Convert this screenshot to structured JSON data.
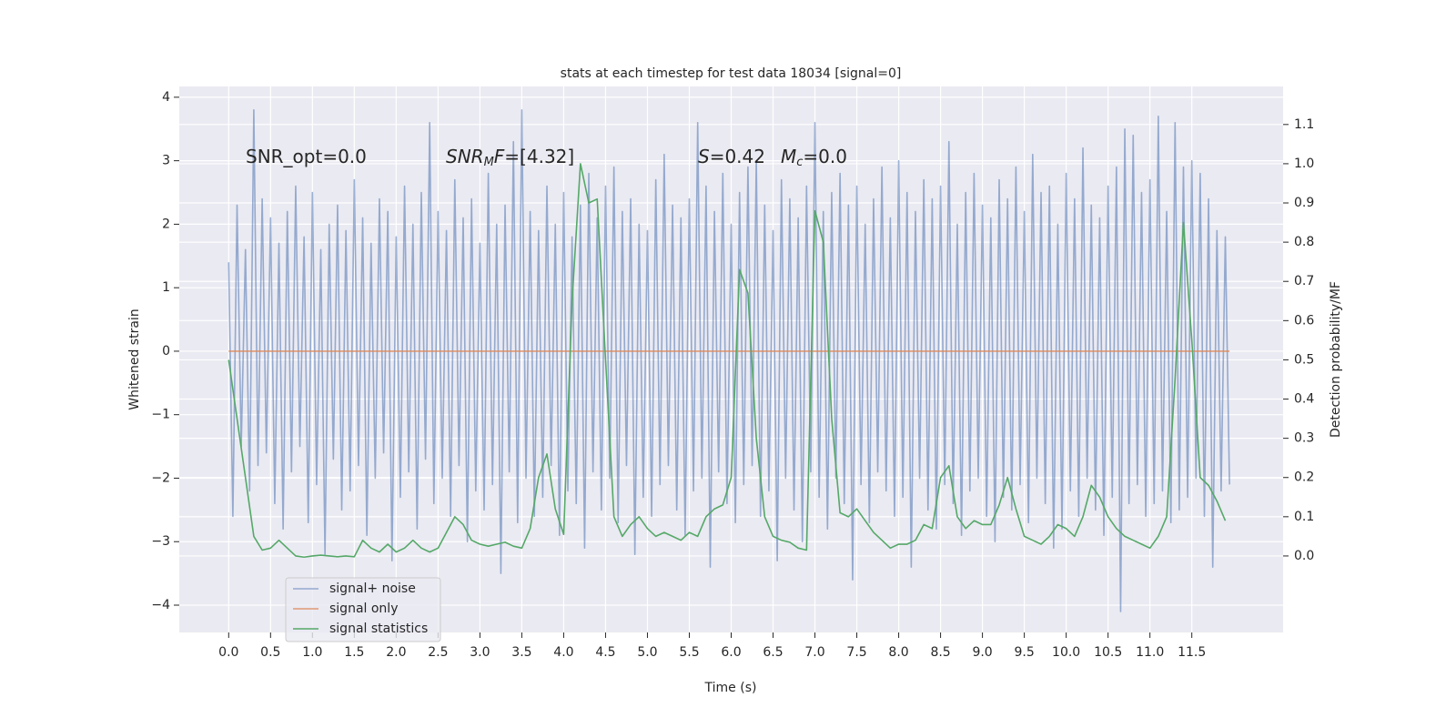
{
  "chart_data": {
    "type": "line",
    "title": "stats at each timestep for test data 18034 [signal=0]",
    "xlabel": "Time (s)",
    "ylabel": "Whitened strain",
    "y2label": "Detection probability/MF",
    "xlim": [
      -0.59,
      12.59
    ],
    "ylim": [
      -4.43,
      4.17
    ],
    "y2lim": [
      -0.195,
      1.197
    ],
    "xticks": [
      {
        "value": 0,
        "label": "0.0"
      },
      0.5,
      {
        "value": 1,
        "label": "1.0"
      },
      1.5,
      {
        "value": 2,
        "label": "2.0"
      },
      2.5,
      {
        "value": 3,
        "label": "3.0"
      },
      3.5,
      {
        "value": 4,
        "label": "4.0"
      },
      4.5,
      {
        "value": 5,
        "label": "5.0"
      },
      5.5,
      {
        "value": 6,
        "label": "6.0"
      },
      6.5,
      {
        "value": 7,
        "label": "7.0"
      },
      7.5,
      {
        "value": 8,
        "label": "8.0"
      },
      8.5,
      {
        "value": 9,
        "label": "9.0"
      },
      9.5,
      {
        "value": 10,
        "label": "10.0"
      },
      10.5,
      {
        "value": 11,
        "label": "11.0"
      },
      11.5
    ],
    "yticks": [
      {
        "value": -4,
        "label": "−4"
      },
      {
        "value": -3,
        "label": "−3"
      },
      {
        "value": -2,
        "label": "−2"
      },
      {
        "value": -1,
        "label": "−1"
      },
      0,
      1,
      2,
      3,
      4
    ],
    "y2ticks": [
      {
        "value": 0,
        "label": "0.0"
      },
      0.1,
      0.2,
      0.3,
      0.4,
      0.5,
      0.6,
      0.7,
      0.8,
      0.9,
      {
        "value": 1,
        "label": "1.0"
      },
      1.1
    ],
    "grid": true,
    "legend": "lower left",
    "annotations": [
      [
        {
          "text": "SNR_opt=0.0"
        }
      ],
      [
        {
          "text": "SNR",
          "italic": true
        },
        {
          "text": "M",
          "italic": true,
          "sub": true
        },
        {
          "text": "F",
          "italic": true
        },
        {
          "text": "=[4.32]"
        }
      ],
      [
        {
          "text": "S",
          "italic": true
        },
        {
          "text": "=0.42"
        }
      ],
      [
        {
          "text": "M",
          "italic": true
        },
        {
          "text": "c",
          "italic": true,
          "sub": true
        },
        {
          "text": "=0.0"
        }
      ]
    ],
    "series": [
      {
        "name": "signal+ noise",
        "color": "#4c72b0",
        "opacity": 0.55,
        "x": [
          0,
          0.05,
          0.1,
          0.15,
          0.2,
          0.25,
          0.3,
          0.35,
          0.4,
          0.45,
          0.5,
          0.55,
          0.6,
          0.65,
          0.7,
          0.75,
          0.8,
          0.85,
          0.9,
          0.95,
          1,
          1.05,
          1.1,
          1.15,
          1.2,
          1.25,
          1.3,
          1.35,
          1.4,
          1.45,
          1.5,
          1.55,
          1.6,
          1.65,
          1.7,
          1.75,
          1.8,
          1.85,
          1.9,
          1.95,
          2,
          2.05,
          2.1,
          2.15,
          2.2,
          2.25,
          2.3,
          2.35,
          2.4,
          2.45,
          2.5,
          2.55,
          2.6,
          2.65,
          2.7,
          2.75,
          2.8,
          2.85,
          2.9,
          2.95,
          3,
          3.05,
          3.1,
          3.15,
          3.2,
          3.25,
          3.3,
          3.35,
          3.4,
          3.45,
          3.5,
          3.55,
          3.6,
          3.65,
          3.7,
          3.75,
          3.8,
          3.85,
          3.9,
          3.95,
          4,
          4.05,
          4.1,
          4.15,
          4.2,
          4.25,
          4.3,
          4.35,
          4.4,
          4.45,
          4.5,
          4.55,
          4.6,
          4.65,
          4.7,
          4.75,
          4.8,
          4.85,
          4.9,
          4.95,
          5,
          5.05,
          5.1,
          5.15,
          5.2,
          5.25,
          5.3,
          5.35,
          5.4,
          5.45,
          5.5,
          5.55,
          5.6,
          5.65,
          5.7,
          5.75,
          5.8,
          5.85,
          5.9,
          5.95,
          6,
          6.05,
          6.1,
          6.15,
          6.2,
          6.25,
          6.3,
          6.35,
          6.4,
          6.45,
          6.5,
          6.55,
          6.6,
          6.65,
          6.7,
          6.75,
          6.8,
          6.85,
          6.9,
          6.95,
          7,
          7.05,
          7.1,
          7.15,
          7.2,
          7.25,
          7.3,
          7.35,
          7.4,
          7.45,
          7.5,
          7.55,
          7.6,
          7.65,
          7.7,
          7.75,
          7.8,
          7.85,
          7.9,
          7.95,
          8,
          8.05,
          8.1,
          8.15,
          8.2,
          8.25,
          8.3,
          8.35,
          8.4,
          8.45,
          8.5,
          8.55,
          8.6,
          8.65,
          8.7,
          8.75,
          8.8,
          8.85,
          8.9,
          8.95,
          9,
          9.05,
          9.1,
          9.15,
          9.2,
          9.25,
          9.3,
          9.35,
          9.4,
          9.45,
          9.5,
          9.55,
          9.6,
          9.65,
          9.7,
          9.75,
          9.8,
          9.85,
          9.9,
          9.95,
          10,
          10.05,
          10.1,
          10.15,
          10.2,
          10.25,
          10.3,
          10.35,
          10.4,
          10.45,
          10.5,
          10.55,
          10.6,
          10.65,
          10.7,
          10.75,
          10.8,
          10.85,
          10.9,
          10.95,
          11,
          11.05,
          11.1,
          11.15,
          11.2,
          11.25,
          11.3,
          11.35,
          11.4,
          11.45,
          11.5,
          11.55,
          11.6,
          11.65,
          11.7,
          11.75,
          11.8,
          11.85,
          11.9,
          11.95
        ],
        "values": [
          1.4,
          -2.6,
          2.3,
          -1.5,
          1.6,
          -2.2,
          3.8,
          -1.8,
          2.4,
          -1.6,
          2.1,
          -2.4,
          1.7,
          -2.8,
          2.2,
          -1.9,
          2.6,
          -1.5,
          1.8,
          -2.7,
          2.5,
          -2.1,
          1.6,
          -3.2,
          2.0,
          -1.7,
          2.3,
          -2.5,
          1.9,
          -2.2,
          2.7,
          -1.8,
          2.1,
          -2.9,
          1.7,
          -2.0,
          2.4,
          -1.6,
          2.2,
          -3.3,
          1.8,
          -2.3,
          2.6,
          -1.9,
          2.0,
          -2.8,
          2.5,
          -1.7,
          3.6,
          -2.4,
          2.2,
          -2.0,
          1.9,
          -2.6,
          2.7,
          -1.8,
          2.1,
          -3.0,
          2.4,
          -2.2,
          1.7,
          -2.5,
          2.8,
          -2.1,
          2.0,
          -3.5,
          2.3,
          -1.9,
          3.3,
          -2.7,
          3.8,
          -2.0,
          2.2,
          -2.6,
          1.9,
          -2.3,
          2.6,
          -1.8,
          2.0,
          -2.9,
          2.5,
          -2.2,
          1.8,
          -2.4,
          2.3,
          -3.1,
          2.8,
          -1.9,
          2.1,
          -2.5,
          2.6,
          -2.0,
          2.9,
          -2.7,
          2.2,
          -1.8,
          2.4,
          -3.2,
          2.0,
          -2.3,
          1.9,
          -2.6,
          2.7,
          -2.1,
          3.1,
          -1.8,
          2.3,
          -2.5,
          2.1,
          -2.9,
          2.4,
          -2.2,
          3.6,
          -2.0,
          2.6,
          -3.4,
          2.2,
          -1.9,
          2.8,
          -2.4,
          2.0,
          -2.7,
          2.5,
          -2.1,
          2.9,
          -1.8,
          3.0,
          -2.6,
          2.3,
          -2.2,
          1.9,
          -3.3,
          2.7,
          -2.0,
          2.4,
          -2.5,
          2.1,
          -3.0,
          2.6,
          -1.9,
          3.6,
          -2.3,
          2.2,
          -2.8,
          2.5,
          -2.0,
          2.8,
          -2.4,
          2.3,
          -3.6,
          2.6,
          -2.1,
          2.0,
          -2.7,
          2.4,
          -1.9,
          2.9,
          -2.2,
          2.1,
          -2.6,
          3.0,
          -2.3,
          2.5,
          -3.4,
          2.2,
          -2.0,
          2.7,
          -2.5,
          2.4,
          -2.8,
          2.6,
          -2.1,
          3.3,
          -2.4,
          2.0,
          -2.9,
          2.5,
          -2.2,
          2.8,
          -2.0,
          2.3,
          -2.6,
          2.1,
          -3.0,
          2.7,
          -2.3,
          2.4,
          -2.5,
          2.9,
          -2.1,
          2.2,
          -2.7,
          3.1,
          -2.0,
          2.5,
          -2.4,
          2.6,
          -3.1,
          2.0,
          -2.8,
          2.8,
          -2.2,
          2.4,
          -2.6,
          3.2,
          -2.0,
          2.3,
          -2.5,
          2.1,
          -2.9,
          2.6,
          -2.3,
          2.9,
          -4.1,
          3.5,
          -2.4,
          3.4,
          -2.1,
          2.5,
          -2.6,
          2.7,
          -2.4,
          3.7,
          -2.2,
          2.2,
          -2.7,
          3.6,
          -2.5,
          2.9,
          -2.3,
          3.0,
          -2.0,
          2.8,
          -2.6,
          2.4,
          -3.4,
          1.9,
          -2.2,
          1.8,
          -2.1
        ]
      },
      {
        "name": "signal only",
        "color": "#dd8452",
        "opacity": 0.8,
        "x": [
          0,
          11.95
        ],
        "values": [
          0,
          0
        ]
      },
      {
        "name": "signal statistics",
        "color": "#55a868",
        "opacity": 1,
        "axis": "y2",
        "x": [
          0,
          0.1,
          0.2,
          0.3,
          0.4,
          0.5,
          0.6,
          0.7,
          0.8,
          0.9,
          1,
          1.1,
          1.2,
          1.3,
          1.4,
          1.5,
          1.6,
          1.7,
          1.8,
          1.9,
          2,
          2.1,
          2.2,
          2.3,
          2.4,
          2.5,
          2.6,
          2.7,
          2.8,
          2.9,
          3,
          3.1,
          3.2,
          3.3,
          3.4,
          3.5,
          3.6,
          3.7,
          3.8,
          3.9,
          4,
          4.1,
          4.2,
          4.3,
          4.4,
          4.5,
          4.6,
          4.7,
          4.8,
          4.9,
          5,
          5.1,
          5.2,
          5.3,
          5.4,
          5.5,
          5.6,
          5.7,
          5.8,
          5.9,
          6,
          6.1,
          6.2,
          6.3,
          6.4,
          6.5,
          6.6,
          6.7,
          6.8,
          6.9,
          7,
          7.1,
          7.2,
          7.3,
          7.4,
          7.5,
          7.6,
          7.7,
          7.8,
          7.9,
          8,
          8.1,
          8.2,
          8.3,
          8.4,
          8.5,
          8.6,
          8.7,
          8.8,
          8.9,
          9,
          9.1,
          9.2,
          9.3,
          9.4,
          9.5,
          9.6,
          9.7,
          9.8,
          9.9,
          10,
          10.1,
          10.2,
          10.3,
          10.4,
          10.5,
          10.6,
          10.7,
          10.8,
          10.9,
          11,
          11.1,
          11.2,
          11.3,
          11.4,
          11.5,
          11.6,
          11.7,
          11.8,
          11.9
        ],
        "values": [
          0.5,
          0.35,
          0.2,
          0.05,
          0.015,
          0.02,
          0.04,
          0.02,
          0.0,
          -0.003,
          0.0,
          0.002,
          0.0,
          -0.002,
          0.0,
          -0.002,
          0.04,
          0.02,
          0.01,
          0.03,
          0.01,
          0.02,
          0.04,
          0.02,
          0.01,
          0.02,
          0.06,
          0.1,
          0.08,
          0.04,
          0.03,
          0.025,
          0.03,
          0.035,
          0.025,
          0.02,
          0.07,
          0.2,
          0.26,
          0.12,
          0.055,
          0.65,
          1.0,
          0.9,
          0.91,
          0.5,
          0.1,
          0.05,
          0.08,
          0.1,
          0.07,
          0.05,
          0.06,
          0.05,
          0.04,
          0.06,
          0.05,
          0.1,
          0.12,
          0.13,
          0.2,
          0.73,
          0.67,
          0.3,
          0.1,
          0.05,
          0.04,
          0.035,
          0.02,
          0.015,
          0.88,
          0.8,
          0.35,
          0.11,
          0.1,
          0.12,
          0.09,
          0.06,
          0.04,
          0.02,
          0.03,
          0.03,
          0.04,
          0.08,
          0.07,
          0.2,
          0.23,
          0.1,
          0.07,
          0.09,
          0.08,
          0.08,
          0.13,
          0.2,
          0.12,
          0.05,
          0.04,
          0.03,
          0.05,
          0.08,
          0.07,
          0.05,
          0.1,
          0.18,
          0.15,
          0.1,
          0.07,
          0.05,
          0.04,
          0.03,
          0.02,
          0.05,
          0.1,
          0.45,
          0.85,
          0.55,
          0.2,
          0.18,
          0.14,
          0.09
        ]
      }
    ]
  }
}
